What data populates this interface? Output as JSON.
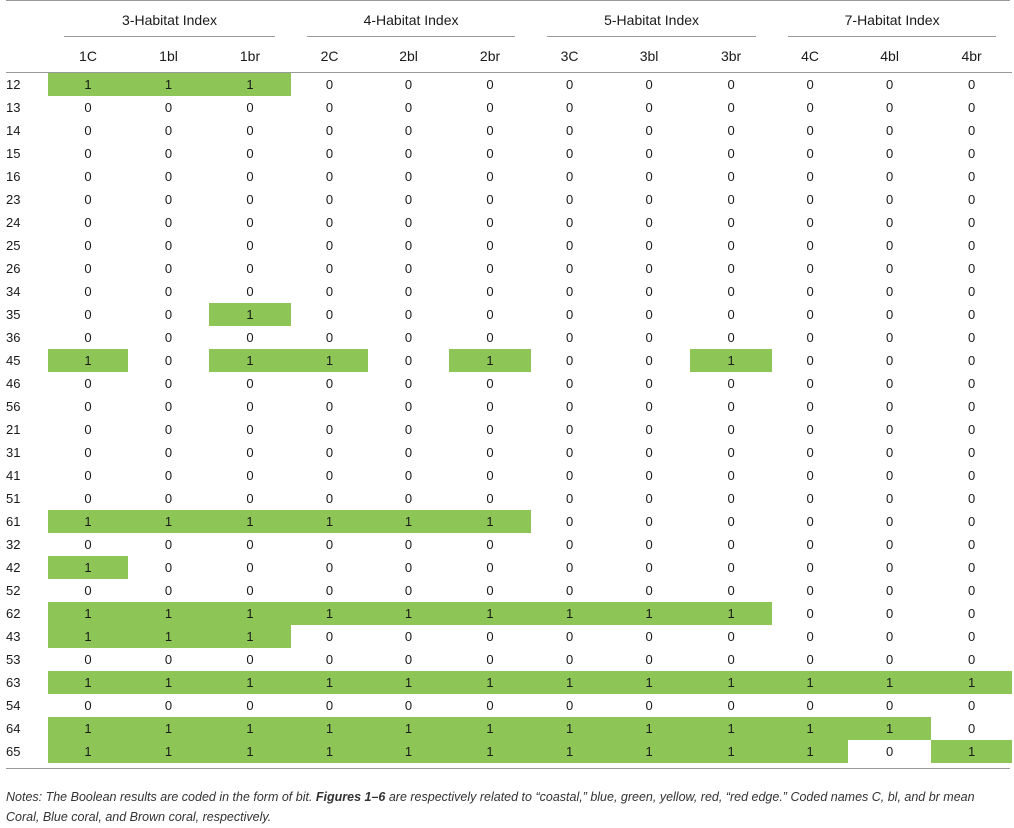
{
  "groups": [
    "3-Habitat Index",
    "4-Habitat Index",
    "5-Habitat Index",
    "7-Habitat Index"
  ],
  "columns": [
    "1C",
    "1bl",
    "1br",
    "2C",
    "2bl",
    "2br",
    "3C",
    "3bl",
    "3br",
    "4C",
    "4bl",
    "4br"
  ],
  "highlight_color": "#8dc556",
  "rows": [
    {
      "id": "12",
      "values": [
        "1",
        "1",
        "1",
        "0",
        "0",
        "0",
        "0",
        "0",
        "0",
        "0",
        "0",
        "0"
      ]
    },
    {
      "id": "13",
      "values": [
        "0",
        "0",
        "0",
        "0",
        "0",
        "0",
        "0",
        "0",
        "0",
        "0",
        "0",
        "0"
      ]
    },
    {
      "id": "14",
      "values": [
        "0",
        "0",
        "0",
        "0",
        "0",
        "0",
        "0",
        "0",
        "0",
        "0",
        "0",
        "0"
      ]
    },
    {
      "id": "15",
      "values": [
        "0",
        "0",
        "0",
        "0",
        "0",
        "0",
        "0",
        "0",
        "0",
        "0",
        "0",
        "0"
      ]
    },
    {
      "id": "16",
      "values": [
        "0",
        "0",
        "0",
        "0",
        "0",
        "0",
        "0",
        "0",
        "0",
        "0",
        "0",
        "0"
      ]
    },
    {
      "id": "23",
      "values": [
        "0",
        "0",
        "0",
        "0",
        "0",
        "0",
        "0",
        "0",
        "0",
        "0",
        "0",
        "0"
      ]
    },
    {
      "id": "24",
      "values": [
        "0",
        "0",
        "0",
        "0",
        "0",
        "0",
        "0",
        "0",
        "0",
        "0",
        "0",
        "0"
      ]
    },
    {
      "id": "25",
      "values": [
        "0",
        "0",
        "0",
        "0",
        "0",
        "0",
        "0",
        "0",
        "0",
        "0",
        "0",
        "0"
      ]
    },
    {
      "id": "26",
      "values": [
        "0",
        "0",
        "0",
        "0",
        "0",
        "0",
        "0",
        "0",
        "0",
        "0",
        "0",
        "0"
      ]
    },
    {
      "id": "34",
      "values": [
        "0",
        "0",
        "0",
        "0",
        "0",
        "0",
        "0",
        "0",
        "0",
        "0",
        "0",
        "0"
      ]
    },
    {
      "id": "35",
      "values": [
        "0",
        "0",
        "1",
        "0",
        "0",
        "0",
        "0",
        "0",
        "0",
        "0",
        "0",
        "0"
      ]
    },
    {
      "id": "36",
      "values": [
        "0",
        "0",
        "0",
        "0",
        "0",
        "0",
        "0",
        "0",
        "0",
        "0",
        "0",
        "0"
      ]
    },
    {
      "id": "45",
      "values": [
        "1",
        "0",
        "1",
        "1",
        "0",
        "1",
        "0",
        "0",
        "1",
        "0",
        "0",
        "0"
      ]
    },
    {
      "id": "46",
      "values": [
        "0",
        "0",
        "0",
        "0",
        "0",
        "0",
        "0",
        "0",
        "0",
        "0",
        "0",
        "0"
      ]
    },
    {
      "id": "56",
      "values": [
        "0",
        "0",
        "0",
        "0",
        "0",
        "0",
        "0",
        "0",
        "0",
        "0",
        "0",
        "0"
      ]
    },
    {
      "id": "21",
      "values": [
        "0",
        "0",
        "0",
        "0",
        "0",
        "0",
        "0",
        "0",
        "0",
        "0",
        "0",
        "0"
      ]
    },
    {
      "id": "31",
      "values": [
        "0",
        "0",
        "0",
        "0",
        "0",
        "0",
        "0",
        "0",
        "0",
        "0",
        "0",
        "0"
      ]
    },
    {
      "id": "41",
      "values": [
        "0",
        "0",
        "0",
        "0",
        "0",
        "0",
        "0",
        "0",
        "0",
        "0",
        "0",
        "0"
      ]
    },
    {
      "id": "51",
      "values": [
        "0",
        "0",
        "0",
        "0",
        "0",
        "0",
        "0",
        "0",
        "0",
        "0",
        "0",
        "0"
      ]
    },
    {
      "id": "61",
      "values": [
        "1",
        "1",
        "1",
        "1",
        "1",
        "1",
        "0",
        "0",
        "0",
        "0",
        "0",
        "0"
      ]
    },
    {
      "id": "32",
      "values": [
        "0",
        "0",
        "0",
        "0",
        "0",
        "0",
        "0",
        "0",
        "0",
        "0",
        "0",
        "0"
      ]
    },
    {
      "id": "42",
      "values": [
        "1",
        "0",
        "0",
        "0",
        "0",
        "0",
        "0",
        "0",
        "0",
        "0",
        "0",
        "0"
      ]
    },
    {
      "id": "52",
      "values": [
        "0",
        "0",
        "0",
        "0",
        "0",
        "0",
        "0",
        "0",
        "0",
        "0",
        "0",
        "0"
      ]
    },
    {
      "id": "62",
      "values": [
        "1",
        "1",
        "1",
        "1",
        "1",
        "1",
        "1",
        "1",
        "1",
        "0",
        "0",
        "0"
      ]
    },
    {
      "id": "43",
      "values": [
        "1",
        "1",
        "1",
        "0",
        "0",
        "0",
        "0",
        "0",
        "0",
        "0",
        "0",
        "0"
      ]
    },
    {
      "id": "53",
      "values": [
        "0",
        "0",
        "0",
        "0",
        "0",
        "0",
        "0",
        "0",
        "0",
        "0",
        "0",
        "0"
      ]
    },
    {
      "id": "63",
      "values": [
        "1",
        "1",
        "1",
        "1",
        "1",
        "1",
        "1",
        "1",
        "1",
        "1",
        "1",
        "1"
      ]
    },
    {
      "id": "54",
      "values": [
        "0",
        "0",
        "0",
        "0",
        "0",
        "0",
        "0",
        "0",
        "0",
        "0",
        "0",
        "0"
      ]
    },
    {
      "id": "64",
      "values": [
        "1",
        "1",
        "1",
        "1",
        "1",
        "1",
        "1",
        "1",
        "1",
        "1",
        "1",
        "0"
      ]
    },
    {
      "id": "65",
      "values": [
        "1",
        "1",
        "1",
        "1",
        "1",
        "1",
        "1",
        "1",
        "1",
        "1",
        "0",
        "1"
      ]
    }
  ],
  "notes": {
    "prefix": "Notes: The Boolean results are coded in the form of bit. ",
    "bold": "Figures 1–6",
    "suffix": " are respectively related to “coastal,” blue, green, yellow, red, “red edge.” Coded names C, bl, and br mean Coral, Blue coral, and Brown coral, respectively."
  }
}
